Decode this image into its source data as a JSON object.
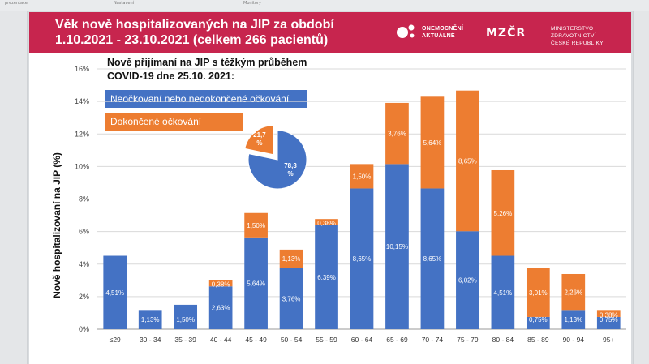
{
  "header": {
    "title_line1": "Věk nově hospitalizovaných na JIP za období",
    "title_line2": "1.10.2021 - 23.10.2021 (celkem 266 pacientů)",
    "logo1_line1": "ONEMOCNĚNÍ",
    "logo1_line2": "AKTUÁLNĚ",
    "logo2_mark": "MZČR",
    "logo2_line1": "MINISTERSTVO ZDRAVOTNICTVÍ",
    "logo2_line2": "ČESKÉ REPUBLIKY"
  },
  "toolbar": {
    "item1": "prezentace",
    "item2": "Nastavení",
    "item3": "Monitory"
  },
  "colors": {
    "banner": "#c7254e",
    "unvaccinated": "#4472c4",
    "vaccinated": "#ed7d31"
  },
  "chart_data": {
    "type": "bar",
    "stacked": true,
    "subtitle_line1": "Nově přijímaní na JIP s těžkým průběhem",
    "subtitle_line2": "COVID-19 dne 25.10. 2021:",
    "ylabel": "Nově hospitalizovaní na JIP (%)",
    "ylim": [
      0,
      16
    ],
    "yticks": [
      "0%",
      "2%",
      "4%",
      "6%",
      "8%",
      "10%",
      "12%",
      "14%",
      "16%"
    ],
    "categories": [
      "≤29",
      "30 - 34",
      "35 - 39",
      "40 - 44",
      "45 - 49",
      "50 - 54",
      "55 - 59",
      "60 - 64",
      "65 - 69",
      "70 - 74",
      "75 - 79",
      "80 - 84",
      "85 - 89",
      "90 - 94",
      "95+"
    ],
    "series": [
      {
        "name": "Neočkovaní nebo nedokončené očkování",
        "values": [
          4.51,
          1.13,
          1.5,
          2.63,
          5.64,
          3.76,
          6.39,
          8.65,
          10.15,
          8.65,
          6.02,
          4.51,
          0.75,
          1.13,
          0.75
        ],
        "labels": [
          "4,51%",
          "1,13%",
          "1,50%",
          "2,63%",
          "5,64%",
          "3,76%",
          "6,39%",
          "8,65%",
          "10,15%",
          "8,65%",
          "6,02%",
          "4,51%",
          "0,75%",
          "1,13%",
          "0,75%"
        ]
      },
      {
        "name": "Dokončené očkování",
        "values": [
          0,
          0,
          0,
          0.38,
          1.5,
          1.13,
          0.38,
          1.5,
          3.76,
          5.64,
          8.65,
          5.26,
          3.01,
          2.26,
          0.38
        ],
        "labels": [
          "",
          "",
          "",
          "0,38%",
          "1,50%",
          "1,13%",
          "0,38%",
          "1,50%",
          "3,76%",
          "5,64%",
          "8,65%",
          "5,26%",
          "3,01%",
          "2,26%",
          "0,38%"
        ]
      }
    ],
    "pie": {
      "values": [
        78.3,
        21.7
      ],
      "labels": [
        "78,3\n%",
        "21,7\n%"
      ]
    }
  }
}
